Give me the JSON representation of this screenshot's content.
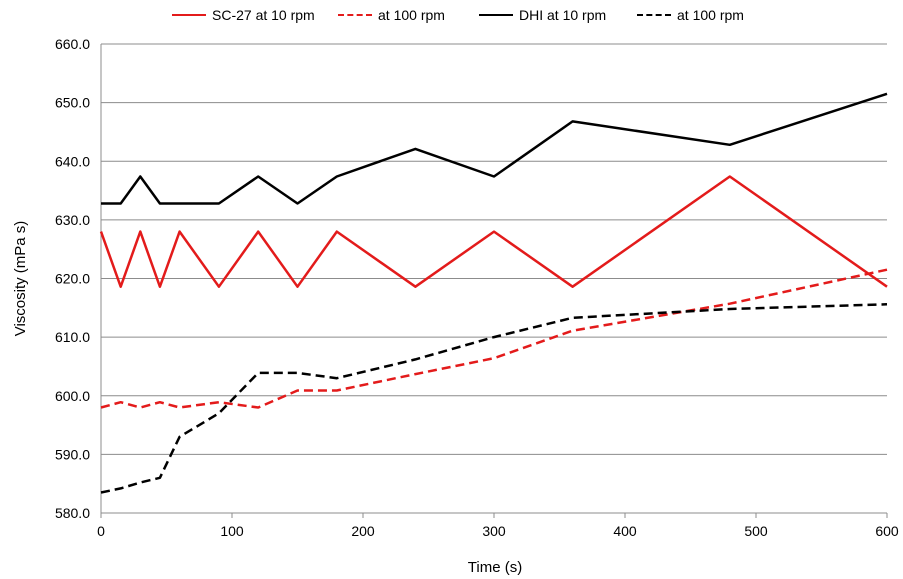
{
  "chart_data": {
    "type": "line",
    "xlabel": "Time (s)",
    "ylabel": "Viscosity (mPa s)",
    "xlim": [
      0,
      600
    ],
    "ylim": [
      580,
      660
    ],
    "x_ticks": [
      0,
      100,
      200,
      300,
      400,
      500,
      600
    ],
    "y_ticks": [
      "580.0",
      "590.0",
      "600.0",
      "610.0",
      "620.0",
      "630.0",
      "640.0",
      "650.0",
      "660.0"
    ],
    "grid": "horizontal",
    "legend_position": "top",
    "series": [
      {
        "name": "SC-27 at 10 rpm",
        "color": "#e31b1b",
        "dash": "solid",
        "x": [
          0,
          15,
          30,
          45,
          60,
          90,
          120,
          150,
          180,
          240,
          300,
          360,
          480,
          600
        ],
        "y": [
          628.0,
          618.6,
          628.0,
          618.6,
          628.0,
          618.6,
          628.0,
          618.6,
          628.0,
          618.6,
          628.0,
          618.6,
          637.4,
          618.6
        ]
      },
      {
        "name": "at 100 rpm",
        "color": "#e31b1b",
        "dash": "dashed",
        "x": [
          0,
          15,
          30,
          45,
          60,
          90,
          120,
          150,
          180,
          240,
          300,
          360,
          480,
          600
        ],
        "y": [
          598.0,
          598.9,
          598.0,
          598.9,
          598.0,
          598.9,
          598.0,
          600.9,
          600.9,
          603.7,
          606.4,
          611.1,
          615.7,
          621.5
        ]
      },
      {
        "name": "DHI at 10 rpm",
        "color": "#000000",
        "dash": "solid",
        "x": [
          0,
          15,
          30,
          45,
          60,
          90,
          120,
          150,
          180,
          240,
          300,
          360,
          480,
          600
        ],
        "y": [
          632.8,
          632.8,
          637.4,
          632.8,
          632.8,
          632.8,
          637.4,
          632.8,
          637.4,
          642.1,
          637.4,
          646.8,
          642.8,
          651.5
        ]
      },
      {
        "name": "at 100 rpm",
        "color": "#000000",
        "dash": "dashed",
        "x": [
          0,
          15,
          30,
          45,
          60,
          90,
          120,
          150,
          180,
          240,
          300,
          360,
          480,
          600
        ],
        "y": [
          583.5,
          584.2,
          585.2,
          586.0,
          593.0,
          597.0,
          603.9,
          603.9,
          603.0,
          606.2,
          610.0,
          613.3,
          614.8,
          615.6
        ]
      }
    ]
  }
}
